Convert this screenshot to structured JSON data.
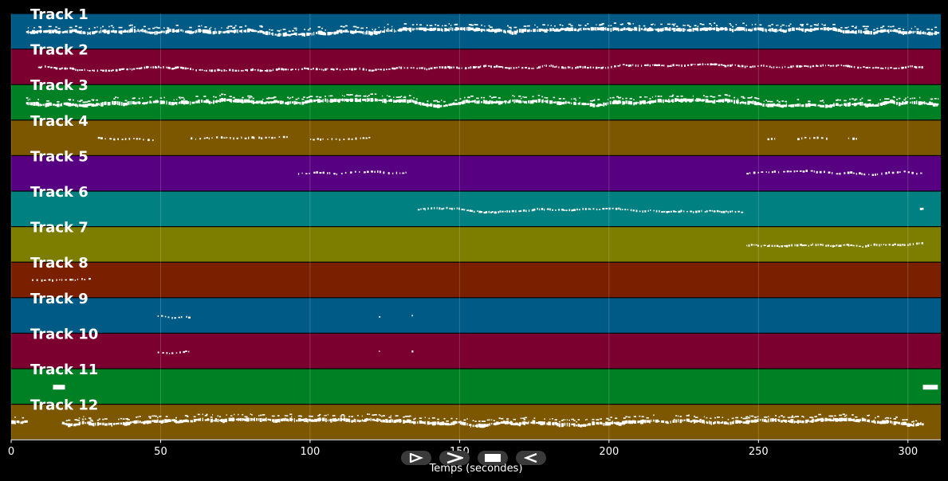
{
  "chart_data": {
    "type": "piano-roll",
    "title": "",
    "xlabel": "Temps (secondes)",
    "xlim": [
      0,
      311
    ],
    "x_ticks": [
      0,
      50,
      100,
      150,
      200,
      250,
      300
    ],
    "grid": true,
    "note_color": "#ffffff",
    "tracks": [
      {
        "name": "Track 1",
        "color": "#005a86",
        "segments": [
          [
            5,
            310
          ]
        ],
        "density": "dense"
      },
      {
        "name": "Track 2",
        "color": "#7b0030",
        "segments": [
          [
            9,
            305
          ]
        ],
        "density": "medium"
      },
      {
        "name": "Track 3",
        "color": "#008024",
        "segments": [
          [
            5,
            310
          ]
        ],
        "density": "dense"
      },
      {
        "name": "Track 4",
        "color": "#7d5600",
        "segments": [
          [
            29,
            48
          ],
          [
            60,
            93
          ],
          [
            100,
            120
          ],
          [
            253,
            256
          ],
          [
            263,
            273
          ],
          [
            280,
            283
          ]
        ],
        "density": "sparse"
      },
      {
        "name": "Track 5",
        "color": "#570082",
        "segments": [
          [
            96,
            132
          ],
          [
            246,
            305
          ]
        ],
        "density": "sparse"
      },
      {
        "name": "Track 6",
        "color": "#008080",
        "segments": [
          [
            136,
            245
          ],
          [
            304,
            305
          ]
        ],
        "density": "medium"
      },
      {
        "name": "Track 7",
        "color": "#7d7d00",
        "segments": [
          [
            246,
            305
          ]
        ],
        "density": "medium"
      },
      {
        "name": "Track 8",
        "color": "#7a2000",
        "segments": [
          [
            7,
            26
          ]
        ],
        "density": "sparse"
      },
      {
        "name": "Track 9",
        "color": "#005a86",
        "segments": [
          [
            49,
            60
          ],
          [
            123,
            124
          ],
          [
            134,
            135
          ]
        ],
        "density": "sparse"
      },
      {
        "name": "Track 10",
        "color": "#7b0030",
        "segments": [
          [
            49,
            60
          ],
          [
            123,
            124
          ],
          [
            134,
            135
          ]
        ],
        "density": "sparse"
      },
      {
        "name": "Track 11",
        "color": "#008024",
        "segments": [
          [
            14,
            18
          ],
          [
            305,
            310
          ]
        ],
        "density": "block"
      },
      {
        "name": "Track 12",
        "color": "#7d5600",
        "segments": [
          [
            0,
            5
          ],
          [
            17,
            305
          ]
        ],
        "density": "dense"
      }
    ]
  },
  "controls": [
    {
      "name": "play-forward",
      "glyph": "play-outline"
    },
    {
      "name": "fast-forward",
      "glyph": "chevron-right"
    },
    {
      "name": "stop",
      "glyph": "stop-square"
    },
    {
      "name": "play-backward",
      "glyph": "play-left"
    }
  ]
}
